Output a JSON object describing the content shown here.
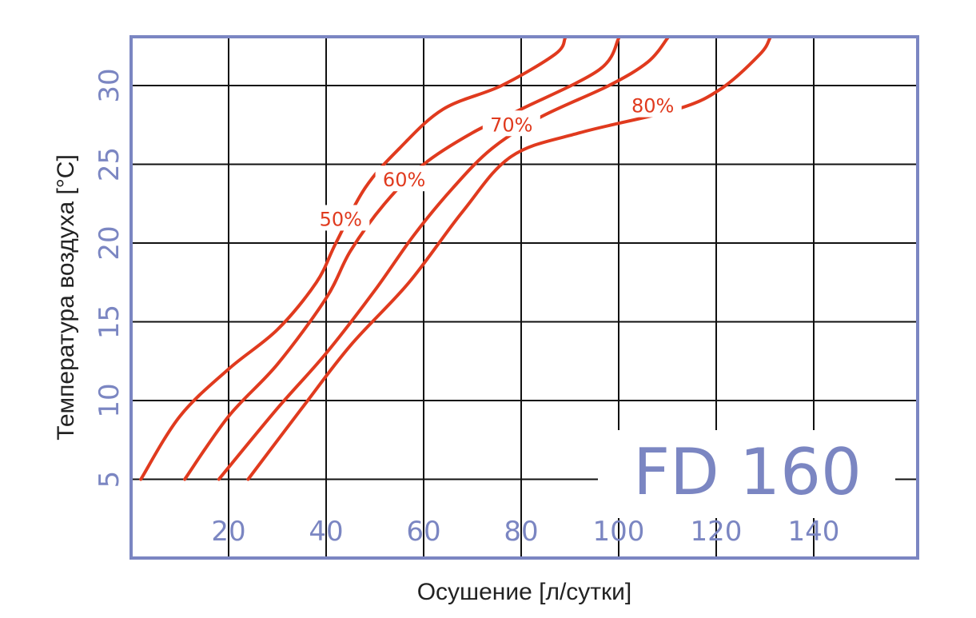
{
  "chart_data": {
    "type": "line",
    "model": "FD 160",
    "xlabel": "Осушение [л/сутки]",
    "ylabel": "Температура воздуха [°C]",
    "xlim": [
      0,
      160
    ],
    "ylim": [
      1,
      33
    ],
    "x_ticks": [
      20,
      40,
      60,
      80,
      100,
      120,
      140
    ],
    "y_ticks": [
      5,
      10,
      15,
      20,
      25,
      30
    ],
    "grid": true,
    "series": [
      {
        "name": "50%",
        "points": [
          [
            2,
            5
          ],
          [
            10,
            9
          ],
          [
            20,
            12
          ],
          [
            30,
            14.5
          ],
          [
            38,
            17.5
          ],
          [
            42,
            20
          ],
          [
            48,
            23.5
          ],
          [
            55,
            26
          ],
          [
            64,
            28.5
          ],
          [
            76,
            30
          ],
          [
            87,
            32
          ],
          [
            89,
            33
          ]
        ],
        "label_at": [
          43,
          21.5
        ]
      },
      {
        "name": "60%",
        "points": [
          [
            11,
            5
          ],
          [
            20,
            9
          ],
          [
            30,
            12.3
          ],
          [
            40,
            16.5
          ],
          [
            45,
            19.5
          ],
          [
            52,
            22.5
          ],
          [
            60,
            25
          ],
          [
            70,
            27
          ],
          [
            80,
            28.5
          ],
          [
            96,
            31
          ],
          [
            100,
            33
          ]
        ],
        "label_at": [
          56,
          24
        ]
      },
      {
        "name": "70%",
        "points": [
          [
            18,
            5
          ],
          [
            30,
            9.5
          ],
          [
            40,
            13
          ],
          [
            50,
            17
          ],
          [
            58,
            20.5
          ],
          [
            66,
            23.5
          ],
          [
            74,
            26
          ],
          [
            84,
            28
          ],
          [
            98,
            30
          ],
          [
            106,
            31.5
          ],
          [
            110,
            33
          ]
        ],
        "label_at": [
          78,
          27.5
        ]
      },
      {
        "name": "80%",
        "points": [
          [
            24,
            5
          ],
          [
            35,
            9.5
          ],
          [
            45,
            13.5
          ],
          [
            57,
            17.5
          ],
          [
            68,
            22
          ],
          [
            78,
            25.5
          ],
          [
            92,
            27
          ],
          [
            112,
            28.5
          ],
          [
            121,
            29.8
          ],
          [
            129,
            32
          ],
          [
            131,
            33
          ]
        ],
        "label_at": [
          107,
          28.7
        ]
      }
    ],
    "colors": {
      "curve": "#e03a1e",
      "frame": "#7b86c2",
      "tick": "#7b86c2",
      "grid": "#111111",
      "title": "#222222"
    }
  }
}
